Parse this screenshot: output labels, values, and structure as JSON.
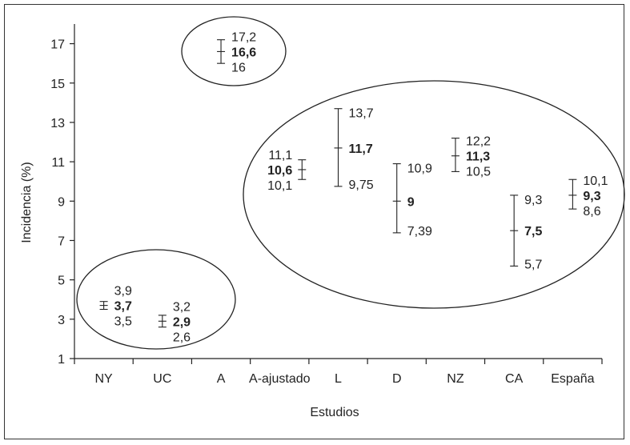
{
  "chart_data": {
    "type": "scatter",
    "xlabel": "Estudios",
    "ylabel": "Incidencia (%)",
    "ylim": [
      1,
      18
    ],
    "yticks": [
      1,
      3,
      5,
      7,
      9,
      11,
      13,
      15,
      17
    ],
    "categories": [
      "NY",
      "UC",
      "A",
      "A-ajustado",
      "L",
      "D",
      "NZ",
      "CA",
      "España"
    ],
    "grid": false,
    "points": [
      {
        "category": "NY",
        "upper": 3.9,
        "value": 3.7,
        "lower": 3.5,
        "upper_label": "3,9",
        "value_label": "3,7",
        "lower_label": "3,5"
      },
      {
        "category": "UC",
        "upper": 3.2,
        "value": 2.9,
        "lower": 2.6,
        "upper_label": "3,2",
        "value_label": "2,9",
        "lower_label": "2,6"
      },
      {
        "category": "A",
        "upper": 17.2,
        "value": 16.6,
        "lower": 16,
        "upper_label": "17,2",
        "value_label": "16,6",
        "lower_label": "16"
      },
      {
        "category": "A-ajustado",
        "upper": 11.1,
        "value": 10.6,
        "lower": 10.1,
        "upper_label": "11,1",
        "value_label": "10,6",
        "lower_label": "10,1"
      },
      {
        "category": "L",
        "upper": 13.7,
        "value": 11.7,
        "lower": 9.75,
        "upper_label": "13,7",
        "value_label": "11,7",
        "lower_label": "9,75"
      },
      {
        "category": "D",
        "upper": 10.9,
        "value": 9,
        "lower": 7.39,
        "upper_label": "10,9",
        "value_label": "9",
        "lower_label": "7,39"
      },
      {
        "category": "NZ",
        "upper": 12.2,
        "value": 11.3,
        "lower": 10.5,
        "upper_label": "12,2",
        "value_label": "11,3",
        "lower_label": "10,5"
      },
      {
        "category": "CA",
        "upper": 9.3,
        "value": 7.5,
        "lower": 5.7,
        "upper_label": "9,3",
        "value_label": "7,5",
        "lower_label": "5,7"
      },
      {
        "category": "España",
        "upper": 10.1,
        "value": 9.3,
        "lower": 8.6,
        "upper_label": "10,1",
        "value_label": "9,3",
        "lower_label": "8,6"
      }
    ],
    "groups": [
      {
        "members": [
          "NY",
          "UC"
        ]
      },
      {
        "members": [
          "A"
        ]
      },
      {
        "members": [
          "A-ajustado",
          "L",
          "D",
          "NZ",
          "CA",
          "España"
        ]
      }
    ]
  }
}
